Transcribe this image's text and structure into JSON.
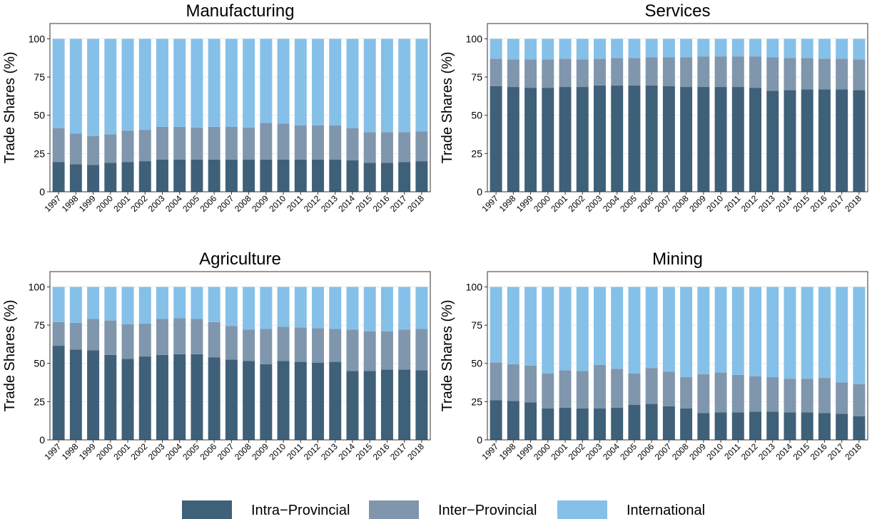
{
  "chart_data": [
    {
      "type": "stacked_bar",
      "title": "Manufacturing",
      "y_label": "Trade Shares (%)",
      "categories": [
        "1997",
        "1998",
        "1999",
        "2000",
        "2001",
        "2002",
        "2003",
        "2004",
        "2005",
        "2006",
        "2007",
        "2008",
        "2009",
        "2010",
        "2011",
        "2012",
        "2013",
        "2014",
        "2015",
        "2016",
        "2017",
        "2018"
      ],
      "series": [
        {
          "values": [
            19.5,
            18,
            17.5,
            19,
            19.5,
            20,
            21,
            21,
            21,
            21,
            21,
            21,
            21,
            21,
            21,
            21,
            21,
            20.5,
            19,
            19,
            19.5,
            20
          ]
        },
        {
          "values": [
            22,
            20,
            19,
            18.5,
            20.5,
            20.5,
            21.5,
            21.5,
            21,
            21.5,
            21.5,
            21,
            24,
            23.5,
            22.5,
            22.5,
            22.5,
            21,
            20,
            20,
            19.5,
            19.5
          ]
        },
        {
          "values": [
            58.5,
            62,
            63.5,
            62.5,
            60,
            59.5,
            57.5,
            57.5,
            58,
            57.5,
            57.5,
            58,
            55,
            55.5,
            56.5,
            56.5,
            56.5,
            58.5,
            61,
            61,
            61,
            60.5
          ]
        }
      ],
      "ylim": [
        0,
        110
      ],
      "yticks": [
        0,
        25,
        50,
        75,
        100
      ],
      "grid": true
    },
    {
      "type": "stacked_bar",
      "title": "Services",
      "y_label": "Trade Shares (%)",
      "categories": [
        "1997",
        "1998",
        "1999",
        "2000",
        "2001",
        "2002",
        "2003",
        "2004",
        "2005",
        "2006",
        "2007",
        "2008",
        "2009",
        "2010",
        "2011",
        "2012",
        "2013",
        "2014",
        "2015",
        "2016",
        "2017",
        "2018"
      ],
      "series": [
        {
          "values": [
            69,
            68.5,
            68,
            68,
            68.5,
            68.5,
            69.5,
            69.5,
            69.5,
            69.5,
            69,
            68.5,
            68.5,
            68.5,
            68.5,
            68,
            66,
            66.5,
            67,
            67,
            67,
            66.5
          ]
        },
        {
          "values": [
            18,
            18,
            18.5,
            18.5,
            18.5,
            18,
            17.5,
            18,
            18,
            18.5,
            19,
            19.5,
            20,
            20,
            20,
            20.5,
            22,
            21,
            20.5,
            20,
            20,
            20
          ]
        },
        {
          "values": [
            13,
            13.5,
            13.5,
            13.5,
            13,
            13.5,
            13,
            12.5,
            12.5,
            12,
            12,
            12,
            11.5,
            11.5,
            11.5,
            11.5,
            12,
            12.5,
            12.5,
            13,
            13,
            13.5
          ]
        }
      ],
      "ylim": [
        0,
        110
      ],
      "yticks": [
        0,
        25,
        50,
        75,
        100
      ],
      "grid": true
    },
    {
      "type": "stacked_bar",
      "title": "Agriculture",
      "y_label": "Trade Shares (%)",
      "categories": [
        "1997",
        "1998",
        "1999",
        "2000",
        "2001",
        "2002",
        "2003",
        "2004",
        "2005",
        "2006",
        "2007",
        "2008",
        "2009",
        "2010",
        "2011",
        "2012",
        "2013",
        "2014",
        "2015",
        "2016",
        "2017",
        "2018"
      ],
      "series": [
        {
          "values": [
            61.5,
            59,
            58.5,
            55.5,
            53,
            54.5,
            55.5,
            56,
            56,
            54,
            52.5,
            51.5,
            49.5,
            51.5,
            51,
            50.5,
            51,
            45,
            45,
            46,
            46,
            45.5
          ]
        },
        {
          "values": [
            15.5,
            17.5,
            20.5,
            22.5,
            22.5,
            21.5,
            23.5,
            23.5,
            23,
            23,
            22,
            20.5,
            23,
            22.5,
            22.5,
            22.5,
            21.5,
            27,
            26,
            25,
            26,
            27
          ]
        },
        {
          "values": [
            23,
            23.5,
            21,
            22,
            24.5,
            24,
            21,
            20.5,
            21,
            23,
            25.5,
            28,
            27.5,
            26,
            26.5,
            27,
            27.5,
            28,
            29,
            29,
            28,
            27.5
          ]
        }
      ],
      "ylim": [
        0,
        110
      ],
      "yticks": [
        0,
        25,
        50,
        75,
        100
      ],
      "grid": true
    },
    {
      "type": "stacked_bar",
      "title": "Mining",
      "y_label": "Trade Shares (%)",
      "categories": [
        "1997",
        "1998",
        "1999",
        "2000",
        "2001",
        "2002",
        "2003",
        "2004",
        "2005",
        "2006",
        "2007",
        "2008",
        "2009",
        "2010",
        "2011",
        "2012",
        "2013",
        "2014",
        "2015",
        "2016",
        "2017",
        "2018"
      ],
      "series": [
        {
          "values": [
            26,
            25.5,
            24.5,
            20.5,
            21,
            20.5,
            20.5,
            21,
            23,
            23.5,
            22,
            20.5,
            17.5,
            18,
            18,
            18.5,
            18.5,
            18,
            18,
            17.5,
            17,
            15.5
          ]
        },
        {
          "values": [
            24.5,
            24,
            24,
            23,
            24.5,
            24.5,
            28.5,
            25.5,
            20.5,
            23.5,
            22.5,
            20.5,
            25.5,
            26,
            24.5,
            23,
            22.5,
            22,
            22,
            23,
            20.5,
            21
          ]
        },
        {
          "values": [
            49.5,
            50.5,
            51.5,
            56.5,
            54.5,
            55,
            51,
            53.5,
            56.5,
            53,
            55.5,
            59,
            57,
            56,
            57.5,
            58.5,
            59,
            60,
            60,
            59.5,
            62.5,
            63.5
          ]
        }
      ],
      "ylim": [
        0,
        110
      ],
      "yticks": [
        0,
        25,
        50,
        75,
        100
      ],
      "grid": true
    }
  ],
  "legend": {
    "position": "bottom",
    "series": [
      {
        "name": "Intra−Provincial",
        "color": "#3f6079"
      },
      {
        "name": "Inter−Provincial",
        "color": "#8096ad"
      },
      {
        "name": "International",
        "color": "#85c0e9"
      }
    ]
  }
}
